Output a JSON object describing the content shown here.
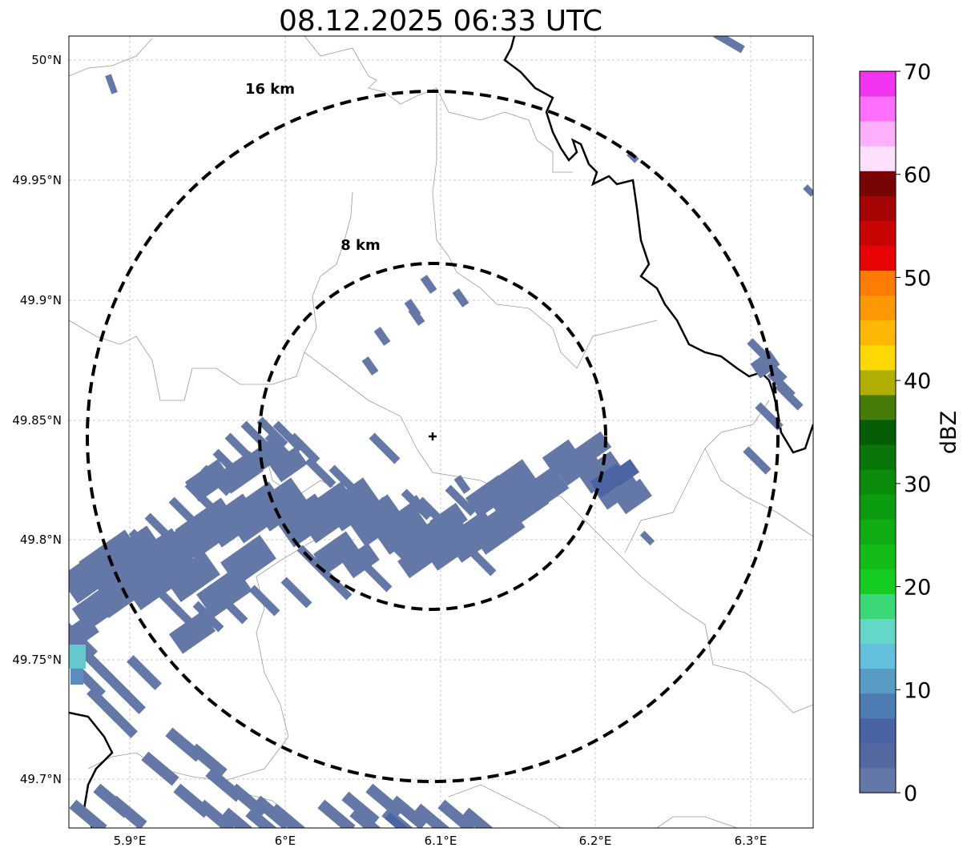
{
  "map": {
    "title": "08.12.2025 06:33 UTC",
    "lat_labels": [
      "50°N",
      "49.95°N",
      "49.9°N",
      "49.85°N",
      "49.8°N",
      "49.75°N",
      "49.7°N"
    ],
    "lon_labels": [
      "5.9°E",
      "6°E",
      "6.1°E",
      "6.2°E",
      "6.3°E"
    ],
    "rings": [
      {
        "label": "16 km",
        "radius_km": 16
      },
      {
        "label": "8 km",
        "radius_km": 8
      }
    ],
    "radar_site": "radar-center-marker"
  },
  "colorbar": {
    "label": "dBZ",
    "ticks": [
      "0",
      "10",
      "20",
      "30",
      "40",
      "50",
      "60",
      "70"
    ],
    "colors": [
      "#6478a8",
      "#5468a0",
      "#4864a4",
      "#4c7cb0",
      "#589cc4",
      "#64c0dc",
      "#64d8c8",
      "#3cd878",
      "#14cc20",
      "#14bc18",
      "#10ac14",
      "#0c9c10",
      "#0c8c0c",
      "#0a760a",
      "#045c04",
      "#467c08",
      "#b0b004",
      "#fcd804",
      "#fcb804",
      "#fc9804",
      "#fc7c04",
      "#e80404",
      "#c80404",
      "#a40404",
      "#780404",
      "#fce0fc",
      "#fcb0fc",
      "#fc70fc",
      "#f034f0"
    ],
    "vmin": 0,
    "vmax": 70
  }
}
